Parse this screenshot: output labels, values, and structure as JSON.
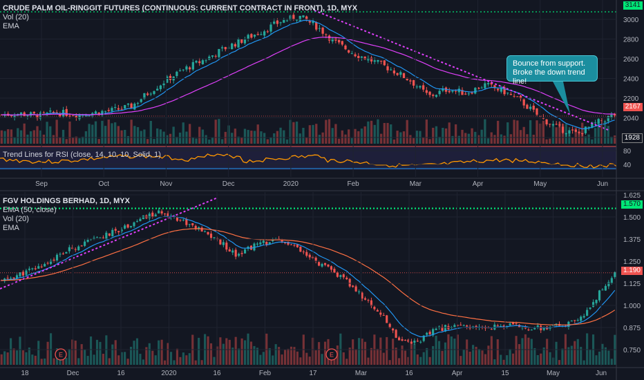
{
  "top_chart": {
    "title": "CRUDE PALM OIL-RINGGIT FUTURES (CONTINUOUS: CURRENT CONTRACT IN FRONT), 1D, MYX",
    "vol_label": "Vol (20)",
    "ema_label": "EMA",
    "rsi_label": "Trend Lines for RSI (close, 14, 10, 10, Solid, 1)",
    "annotation": "Bounce from support. Broke the down trend line!",
    "price_ticks": [
      "3000",
      "2800",
      "2600",
      "2400",
      "2200",
      "2040",
      "1928"
    ],
    "rsi_ticks": [
      "80",
      "40"
    ],
    "x_ticks": [
      "Sep",
      "Oct",
      "Nov",
      "Dec",
      "2020",
      "Feb",
      "Mar",
      "Apr",
      "May",
      "Jun"
    ],
    "last_price": "2167",
    "resistance_label": "3141",
    "support_label": "1928",
    "colors": {
      "up": "#26a69a",
      "down": "#ef5350",
      "ema_fast": "#2196f3",
      "ema_slow": "#e040fb",
      "trend": "#e040fb",
      "rsi": "#ff9800",
      "resistance": "#00e676"
    }
  },
  "bottom_chart": {
    "title": "FGV HOLDINGS BERHAD, 1D, MYX",
    "ema_label": "EMA (50, close)",
    "vol_label": "Vol (20)",
    "ema2_label": "EMA",
    "price_ticks": [
      "1.625",
      "1.500",
      "1.375",
      "1.250",
      "1.125",
      "1.000",
      "0.875",
      "0.750"
    ],
    "x_ticks": [
      "18",
      "Dec",
      "16",
      "2020",
      "16",
      "Feb",
      "17",
      "Mar",
      "16",
      "Apr",
      "15",
      "May",
      "Jun"
    ],
    "last_price": "1.190",
    "resistance_label": "1.570",
    "earnings_marker": "E",
    "colors": {
      "up": "#26a69a",
      "down": "#ef5350",
      "ema_fast": "#2196f3",
      "ema_slow": "#ff7043",
      "trend": "#e040fb",
      "resistance": "#00e676"
    }
  },
  "chart_data": [
    {
      "type": "candlestick",
      "title": "CRUDE PALM OIL-RINGGIT FUTURES (CONTINUOUS: CURRENT CONTRACT IN FRONT), 1D, MYX",
      "x": [
        "Sep",
        "Oct",
        "Nov",
        "Dec",
        "2020",
        "Feb",
        "Mar",
        "Apr",
        "May",
        "Jun"
      ],
      "close_path": [
        2180,
        2190,
        2170,
        2200,
        2180,
        2200,
        2220,
        2260,
        2400,
        2520,
        2620,
        2700,
        2800,
        2880,
        2960,
        3050,
        3100,
        3000,
        2850,
        2750,
        2680,
        2600,
        2500,
        2350,
        2420,
        2380,
        2460,
        2400,
        2300,
        2150,
        2050,
        2000,
        2100,
        2180
      ],
      "ylim": [
        1928,
        3200
      ],
      "last": 2167,
      "resistance": 3141,
      "support": 1928
    },
    {
      "type": "candlestick",
      "title": "FGV HOLDINGS BERHAD, 1D, MYX",
      "x": [
        "18",
        "Dec",
        "16",
        "2020",
        "16",
        "Feb",
        "17",
        "Mar",
        "16",
        "Apr",
        "15",
        "May",
        "Jun"
      ],
      "close_path": [
        1.14,
        1.18,
        1.22,
        1.28,
        1.34,
        1.38,
        1.42,
        1.47,
        1.52,
        1.55,
        1.5,
        1.44,
        1.38,
        1.3,
        1.35,
        1.38,
        1.36,
        1.28,
        1.22,
        1.15,
        1.05,
        0.95,
        0.8,
        0.78,
        0.85,
        0.88,
        0.86,
        0.87,
        0.88,
        0.87,
        0.86,
        0.88,
        0.9,
        1.05,
        1.19
      ],
      "ylim": [
        0.7,
        1.65
      ],
      "last": 1.19,
      "resistance": 1.57
    }
  ]
}
